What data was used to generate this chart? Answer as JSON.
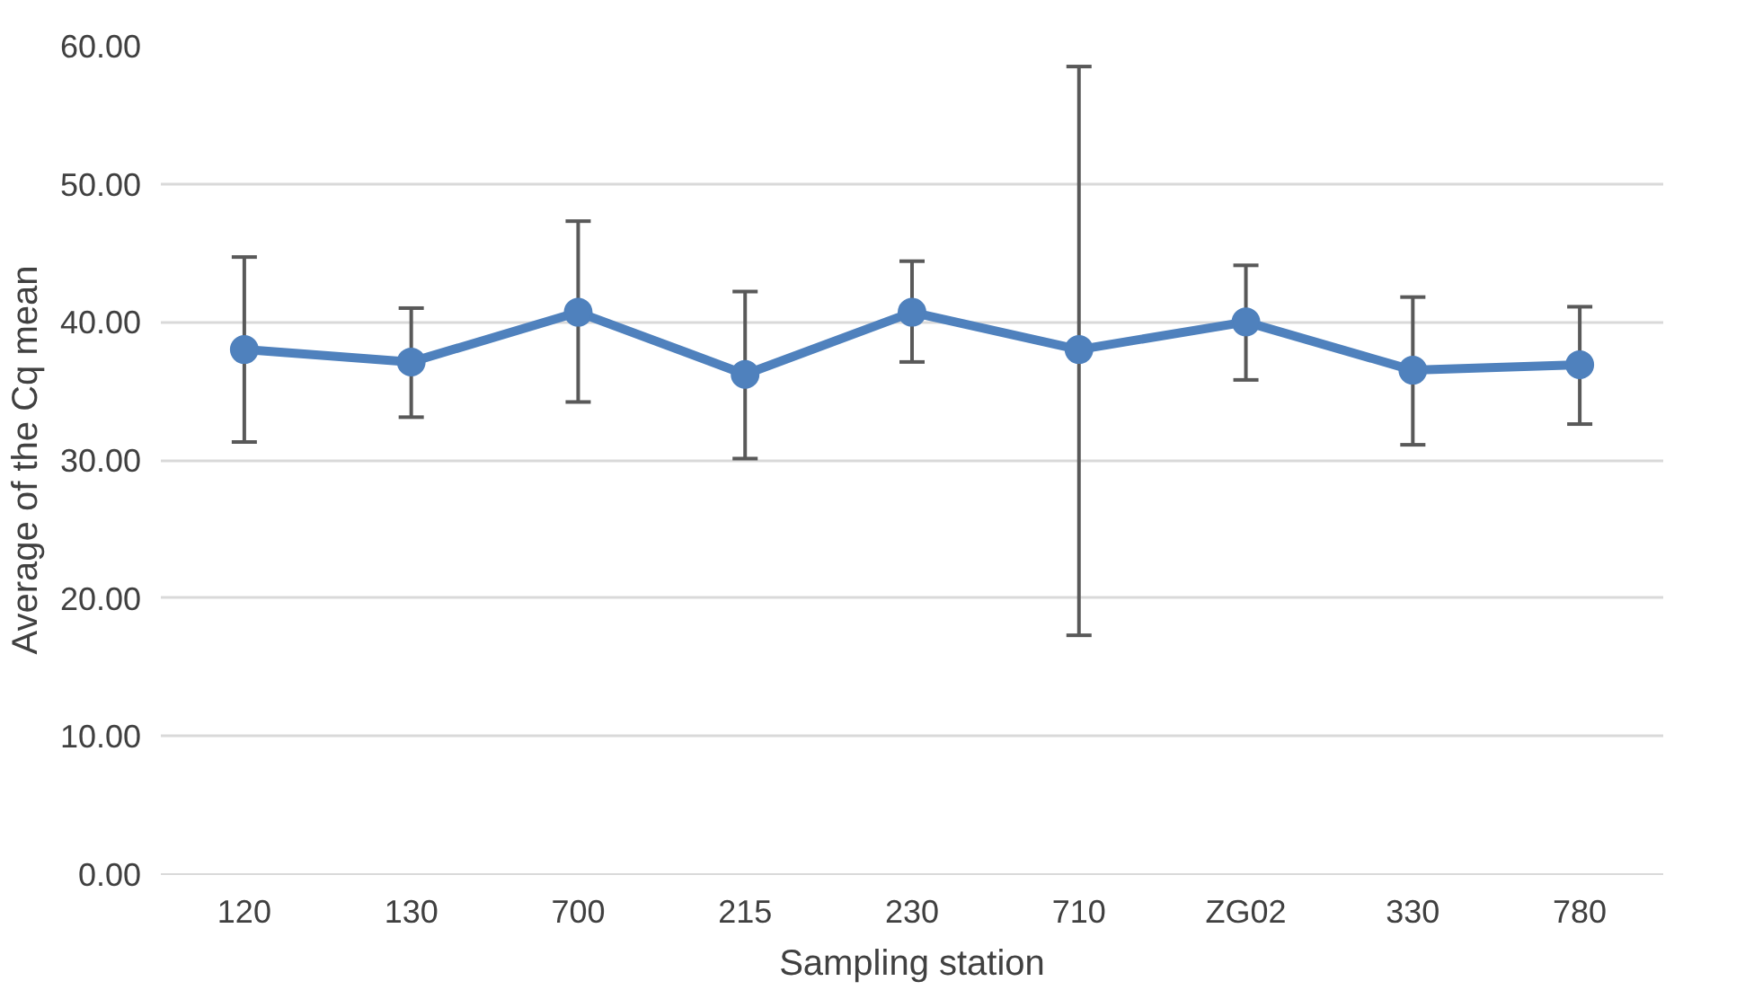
{
  "chart_data": {
    "type": "line",
    "xlabel": "Sampling station",
    "ylabel": "Average of the Cq mean",
    "categories": [
      "120",
      "130",
      "700",
      "215",
      "230",
      "710",
      "ZG02",
      "330",
      "780"
    ],
    "series": [
      {
        "color": "#4f81bd",
        "values": [
          38.0,
          37.1,
          40.7,
          36.2,
          40.7,
          38.0,
          40.0,
          36.5,
          36.9
        ],
        "errors": [
          [
            31.3,
            44.7
          ],
          [
            33.1,
            41.0
          ],
          [
            34.2,
            47.3
          ],
          [
            30.1,
            42.2
          ],
          [
            37.1,
            44.4
          ],
          [
            17.3,
            58.5
          ],
          [
            35.8,
            44.1
          ],
          [
            31.1,
            41.8
          ],
          [
            32.6,
            41.1
          ]
        ]
      }
    ],
    "ylim": [
      0,
      60
    ],
    "yticks": [
      {
        "value": 0,
        "label": "0.00"
      },
      {
        "value": 10,
        "label": "10.00"
      },
      {
        "value": 20,
        "label": "20.00"
      },
      {
        "value": 30,
        "label": "30.00"
      },
      {
        "value": 40,
        "label": "40.00"
      },
      {
        "value": 50,
        "label": "50.00"
      },
      {
        "value": 60,
        "label": "60.00"
      }
    ],
    "grid": "y",
    "marker": "circle",
    "line_style": "solid"
  }
}
